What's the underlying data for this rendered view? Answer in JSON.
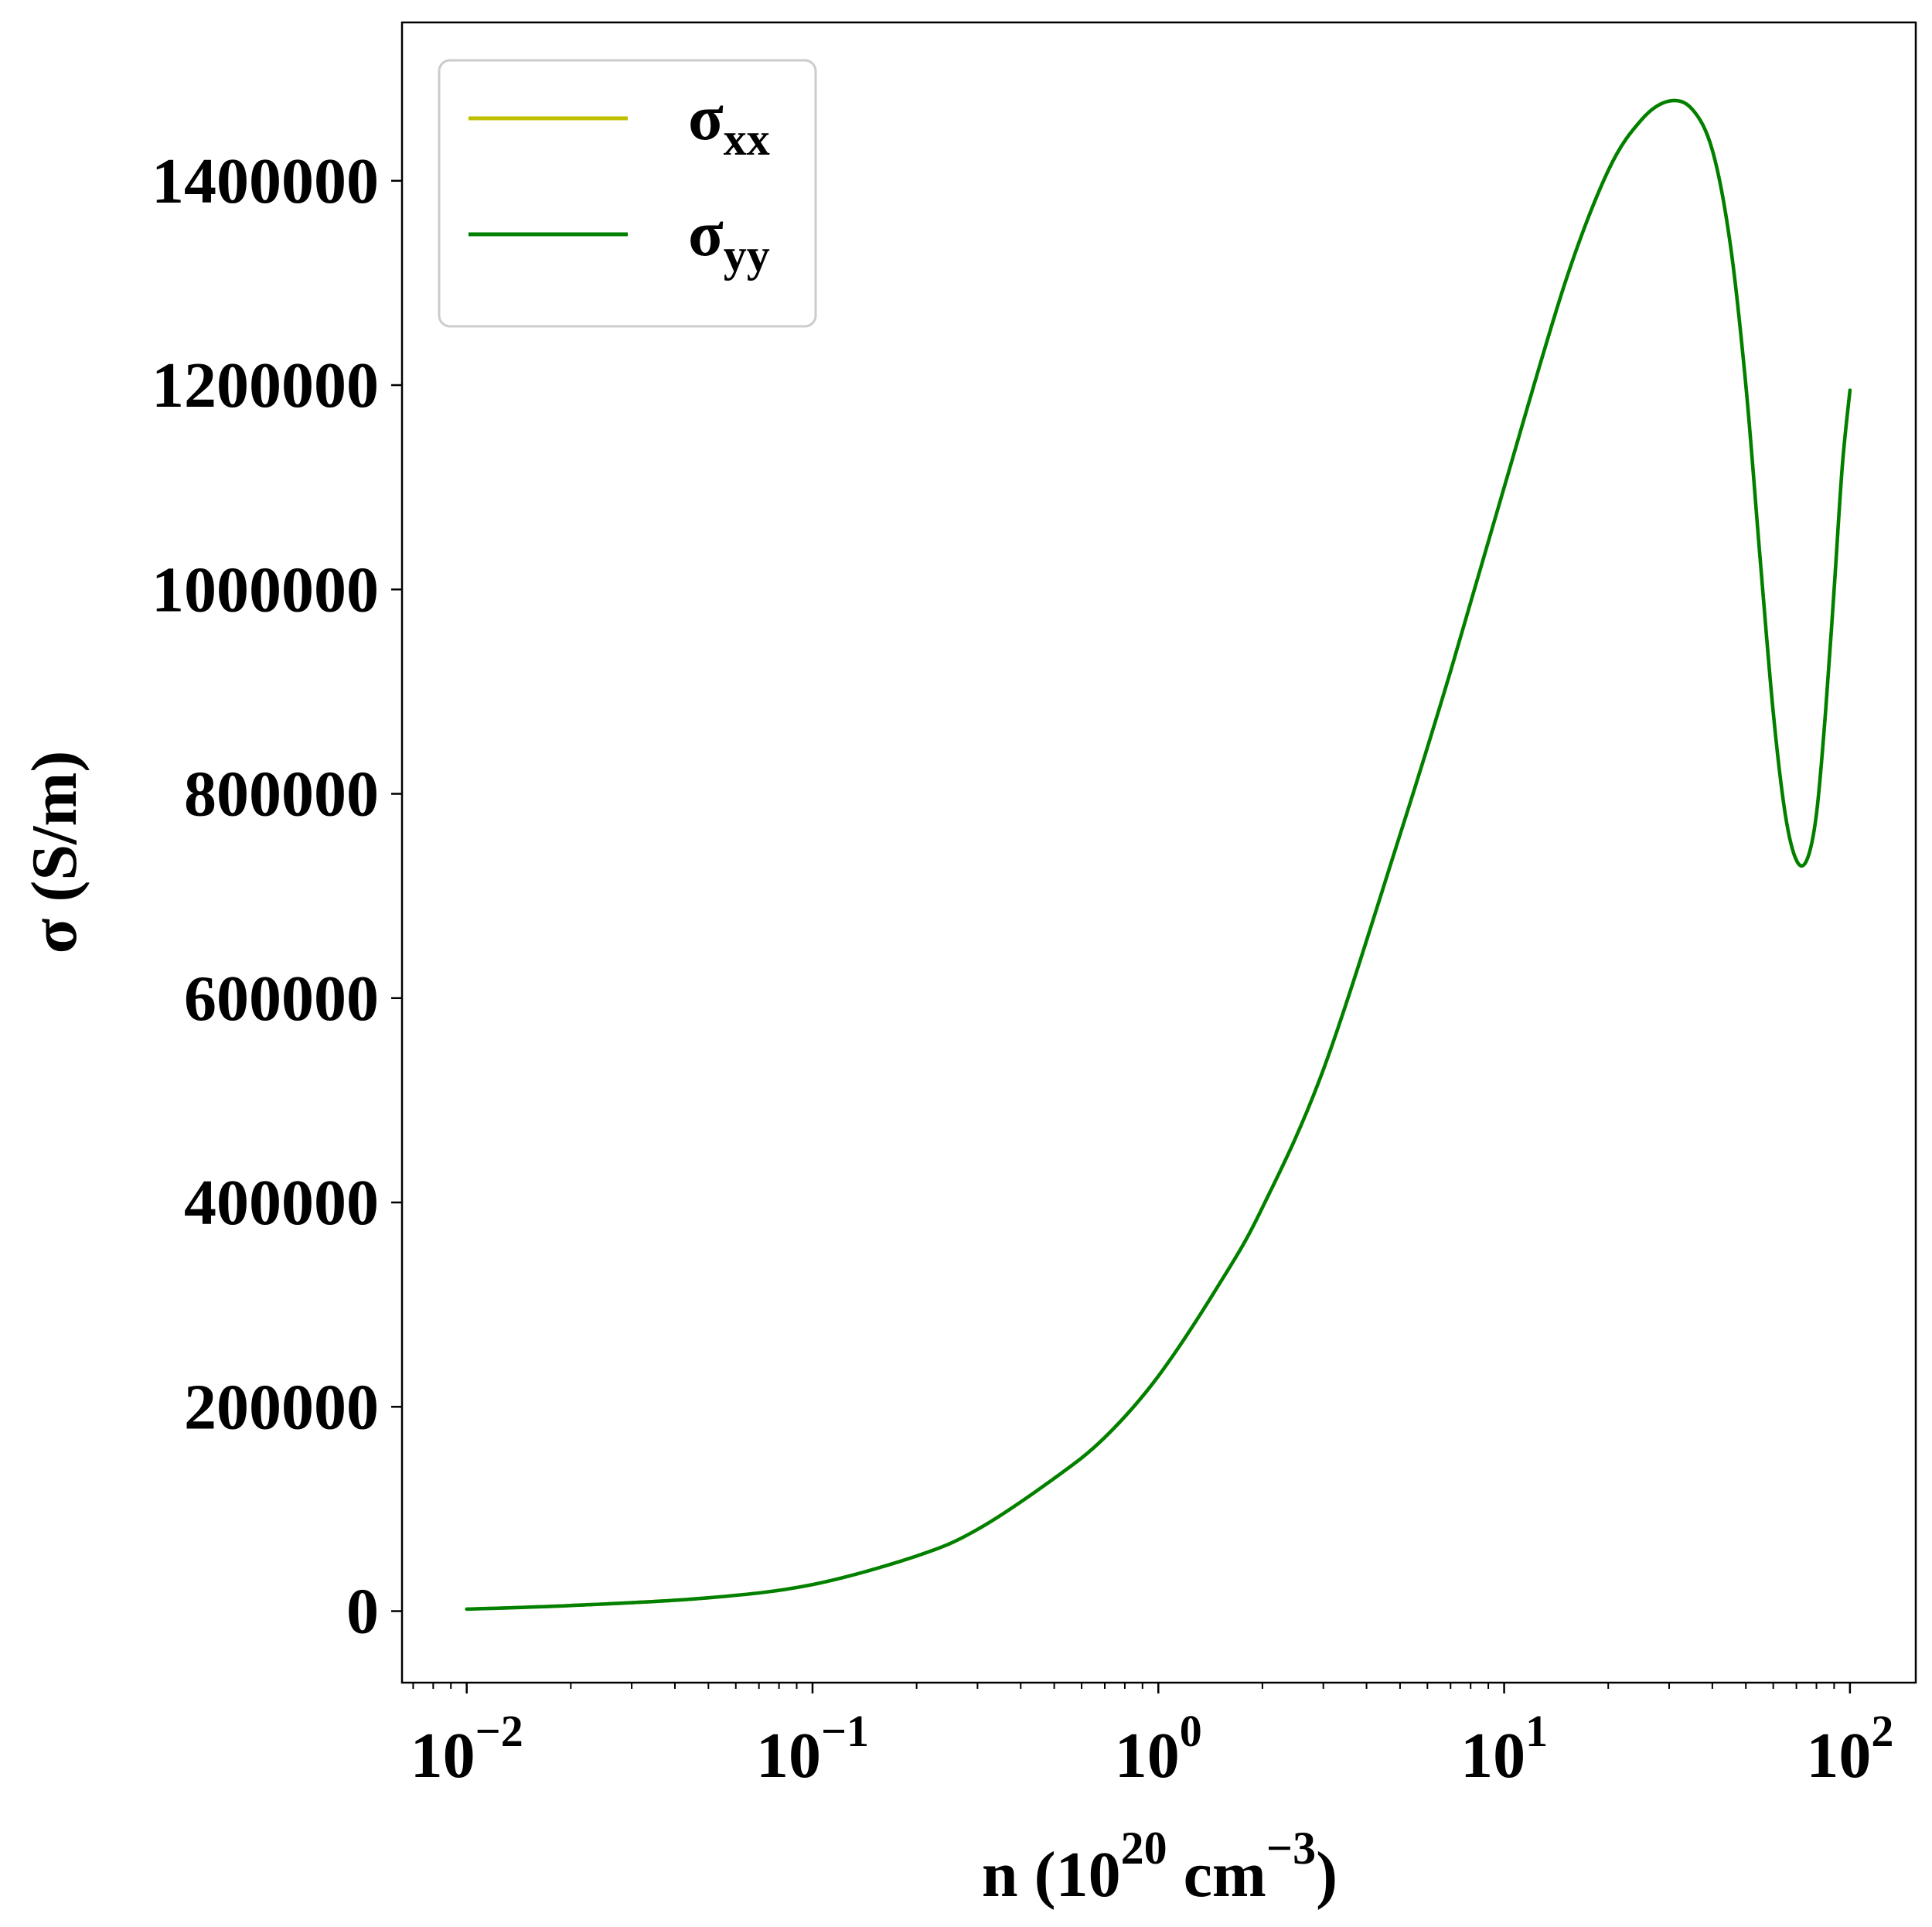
{
  "chart_data": {
    "type": "line",
    "xscale": "log",
    "xlim": [
      0.0065,
      155
    ],
    "ylim": [
      -70000,
      1555000
    ],
    "grid": false,
    "legend_placement": "top-left",
    "xlabel": {
      "base": "n (10",
      "sup1": "20",
      "mid": " cm",
      "sup2": "−3",
      "end": ")"
    },
    "ylabel": "σ (S/m)",
    "yticks": [
      0,
      200000,
      400000,
      600000,
      800000,
      1000000,
      1200000,
      1400000
    ],
    "ytick_labels": [
      "0",
      "200000",
      "400000",
      "600000",
      "800000",
      "1000000",
      "1200000",
      "1400000"
    ],
    "xticks": [
      {
        "value": 0.01,
        "base": "10",
        "exp": "−2"
      },
      {
        "value": 0.1,
        "base": "10",
        "exp": "−1"
      },
      {
        "value": 1,
        "base": "10",
        "exp": "0"
      },
      {
        "value": 10,
        "base": "10",
        "exp": "1"
      },
      {
        "value": 100,
        "base": "10",
        "exp": "2"
      }
    ],
    "series": [
      {
        "name": "σxx",
        "label_main": "σ",
        "label_sub": "xx",
        "color": "#bfbf00",
        "x": [
          0.01,
          0.02,
          0.05,
          0.1,
          0.2,
          0.3,
          0.5,
          0.7,
          1.0,
          1.5,
          2.0,
          3.0,
          5.0,
          7.0,
          10.0,
          15.0,
          20.0,
          25.0,
          30.0,
          35.0,
          40.0,
          45.0,
          50.0,
          55.0,
          60.0,
          65.0,
          70.0,
          75.0,
          80.0,
          85.0,
          90.0,
          95.0,
          100.0
        ],
        "y": [
          2000,
          5500,
          13000,
          26000,
          54000,
          80000,
          130000,
          170000,
          230000,
          320000,
          395000,
          530000,
          760000,
          920000,
          1100000,
          1300000,
          1410000,
          1460000,
          1478000,
          1470000,
          1430000,
          1340000,
          1200000,
          1030000,
          880000,
          780000,
          735000,
          735000,
          780000,
          880000,
          1000000,
          1120000,
          1195000
        ]
      },
      {
        "name": "σyy",
        "label_main": "σ",
        "label_sub": "yy",
        "color": "#008000",
        "x": [
          0.01,
          0.02,
          0.05,
          0.1,
          0.2,
          0.3,
          0.5,
          0.7,
          1.0,
          1.5,
          2.0,
          3.0,
          5.0,
          7.0,
          10.0,
          15.0,
          20.0,
          25.0,
          30.0,
          35.0,
          40.0,
          45.0,
          50.0,
          55.0,
          60.0,
          65.0,
          70.0,
          75.0,
          80.0,
          85.0,
          90.0,
          95.0,
          100.0
        ],
        "y": [
          2000,
          5500,
          13000,
          26000,
          54000,
          80000,
          130000,
          170000,
          230000,
          320000,
          395000,
          530000,
          760000,
          920000,
          1100000,
          1300000,
          1410000,
          1460000,
          1478000,
          1470000,
          1430000,
          1340000,
          1200000,
          1030000,
          880000,
          780000,
          735000,
          735000,
          780000,
          880000,
          1000000,
          1120000,
          1195000
        ]
      }
    ]
  }
}
